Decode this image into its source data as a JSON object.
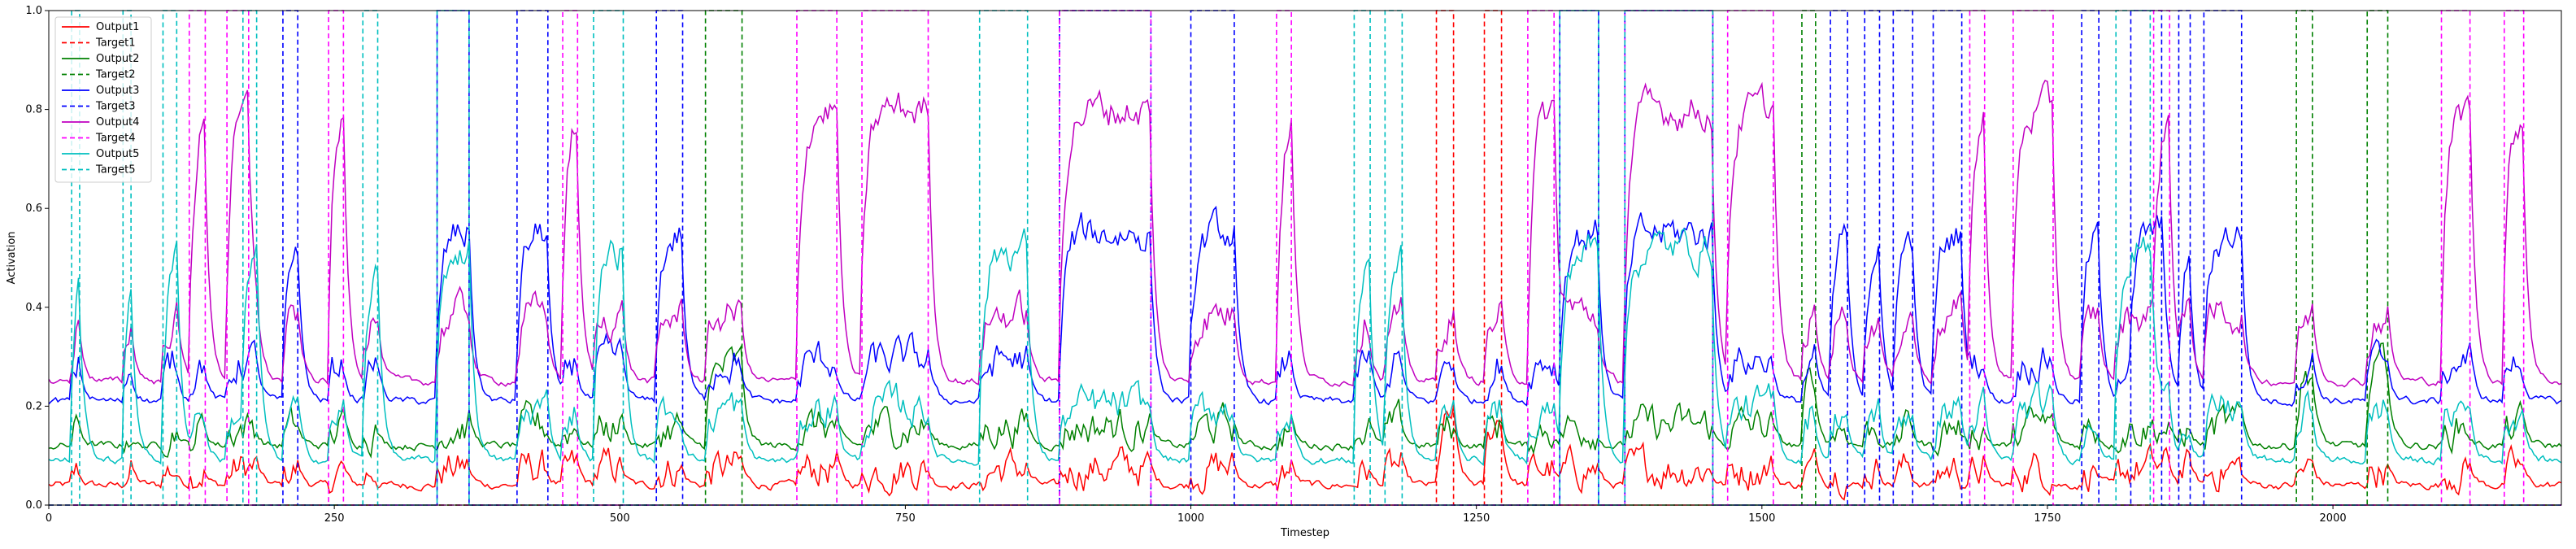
{
  "chart_data": {
    "type": "line",
    "xlabel": "Timestep",
    "ylabel": "Activation",
    "xlim": [
      0,
      2200
    ],
    "ylim": [
      0,
      1.0
    ],
    "xticks": [
      "0",
      "250",
      "500",
      "750",
      "1000",
      "1250",
      "1500",
      "1750",
      "2000"
    ],
    "xtick_values": [
      0,
      250,
      500,
      750,
      1000,
      1250,
      1500,
      1750,
      2000
    ],
    "yticks": [
      "0.0",
      "0.2",
      "0.4",
      "0.6",
      "0.8",
      "1.0"
    ],
    "ytick_values": [
      0.0,
      0.2,
      0.4,
      0.6,
      0.8,
      1.0
    ],
    "grid": false,
    "legend_position": "upper left",
    "series": [
      {
        "name": "Output1",
        "color": "#ff0000",
        "style": "solid",
        "baseline": 0.04,
        "pulse": 0.18
      },
      {
        "name": "Target1",
        "color": "#ff0000",
        "style": "dashed",
        "pulses": [
          [
            1215,
            1230
          ],
          [
            1257,
            1272
          ]
        ]
      },
      {
        "name": "Output2",
        "color": "#008000",
        "style": "solid",
        "baseline": 0.12,
        "pulse": 0.28
      },
      {
        "name": "Target2",
        "color": "#008000",
        "style": "dashed",
        "pulses": [
          [
            575,
            607
          ],
          [
            1535,
            1547
          ],
          [
            1968,
            1982
          ],
          [
            2030,
            2048
          ]
        ]
      },
      {
        "name": "Output3",
        "color": "#0000ff",
        "style": "solid",
        "baseline": 0.21,
        "pulse": 0.55
      },
      {
        "name": "Target3",
        "color": "#0000ff",
        "style": "dashed",
        "pulses": [
          [
            205,
            218
          ],
          [
            340,
            368
          ],
          [
            410,
            437
          ],
          [
            532,
            555
          ],
          [
            885,
            965
          ],
          [
            1000,
            1038
          ],
          [
            1323,
            1357
          ],
          [
            1380,
            1457
          ],
          [
            1560,
            1575
          ],
          [
            1590,
            1603
          ],
          [
            1615,
            1632
          ],
          [
            1650,
            1675
          ],
          [
            1780,
            1795
          ],
          [
            1823,
            1850
          ],
          [
            1865,
            1875
          ],
          [
            1887,
            1920
          ]
        ]
      },
      {
        "name": "Output4",
        "color": "#c000c0",
        "style": "solid",
        "baseline": 0.25,
        "pulse": 0.8
      },
      {
        "name": "Target4",
        "color": "#ff00ff",
        "style": "dashed",
        "pulses": [
          [
            123,
            137
          ],
          [
            156,
            175
          ],
          [
            245,
            258
          ],
          [
            450,
            463
          ],
          [
            655,
            690
          ],
          [
            712,
            770
          ],
          [
            885,
            965
          ],
          [
            1075,
            1088
          ],
          [
            1295,
            1318
          ],
          [
            1380,
            1457
          ],
          [
            1470,
            1510
          ],
          [
            1682,
            1695
          ],
          [
            1720,
            1755
          ],
          [
            1843,
            1857
          ],
          [
            2095,
            2120
          ],
          [
            2150,
            2167
          ]
        ]
      },
      {
        "name": "Output5",
        "color": "#00bfbf",
        "style": "solid",
        "baseline": 0.09,
        "pulse": 0.52
      },
      {
        "name": "Target5",
        "color": "#00bfbf",
        "style": "dashed",
        "pulses": [
          [
            20,
            27
          ],
          [
            65,
            72
          ],
          [
            100,
            112
          ],
          [
            170,
            182
          ],
          [
            275,
            288
          ],
          [
            340,
            368
          ],
          [
            477,
            503
          ],
          [
            815,
            857
          ],
          [
            1143,
            1157
          ],
          [
            1170,
            1185
          ],
          [
            1323,
            1357
          ],
          [
            1380,
            1457
          ],
          [
            1810,
            1840
          ]
        ]
      }
    ]
  }
}
